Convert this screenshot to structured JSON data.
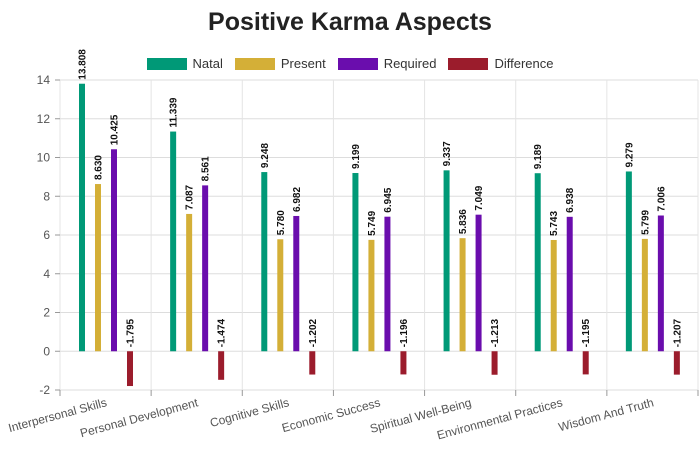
{
  "chart_data": {
    "type": "bar",
    "title": "Positive Karma Aspects",
    "xlabel": "",
    "ylabel": "",
    "ylim": [
      -2,
      14
    ],
    "yticks": [
      -2,
      0,
      2,
      4,
      6,
      8,
      10,
      12,
      14
    ],
    "grid": true,
    "legend_position": "top-center",
    "categories": [
      "Interpersonal Skills",
      "Personal Development",
      "Cognitive Skills",
      "Economic Success",
      "Spiritual Well-Being",
      "Environmental Practices",
      "Wisdom And Truth"
    ],
    "series": [
      {
        "name": "Natal",
        "color": "#009977",
        "values": [
          13.808,
          11.339,
          9.248,
          9.199,
          9.337,
          9.189,
          9.279
        ]
      },
      {
        "name": "Present",
        "color": "#d4af37",
        "values": [
          8.63,
          7.087,
          5.78,
          5.749,
          5.836,
          5.743,
          5.799
        ]
      },
      {
        "name": "Required",
        "color": "#6a0dad",
        "values": [
          10.425,
          8.561,
          6.982,
          6.945,
          7.049,
          6.938,
          7.006
        ]
      },
      {
        "name": "Difference",
        "color": "#9b1c2c",
        "values": [
          -1.795,
          -1.474,
          -1.202,
          -1.196,
          -1.213,
          -1.195,
          -1.207
        ]
      }
    ],
    "data_labels": [
      [
        "13.808",
        "11.339",
        "9.248",
        "9.199",
        "9.337",
        "9.189",
        "9.279"
      ],
      [
        "8.630",
        "7.087",
        "5.780",
        "5.749",
        "5.836",
        "5.743",
        "5.799"
      ],
      [
        "10.425",
        "8.561",
        "6.982",
        "6.945",
        "7.049",
        "6.938",
        "7.006"
      ],
      [
        "-1.795",
        "-1.474",
        "-1.202",
        "-1.196",
        "-1.213",
        "-1.195",
        "-1.207"
      ]
    ]
  }
}
